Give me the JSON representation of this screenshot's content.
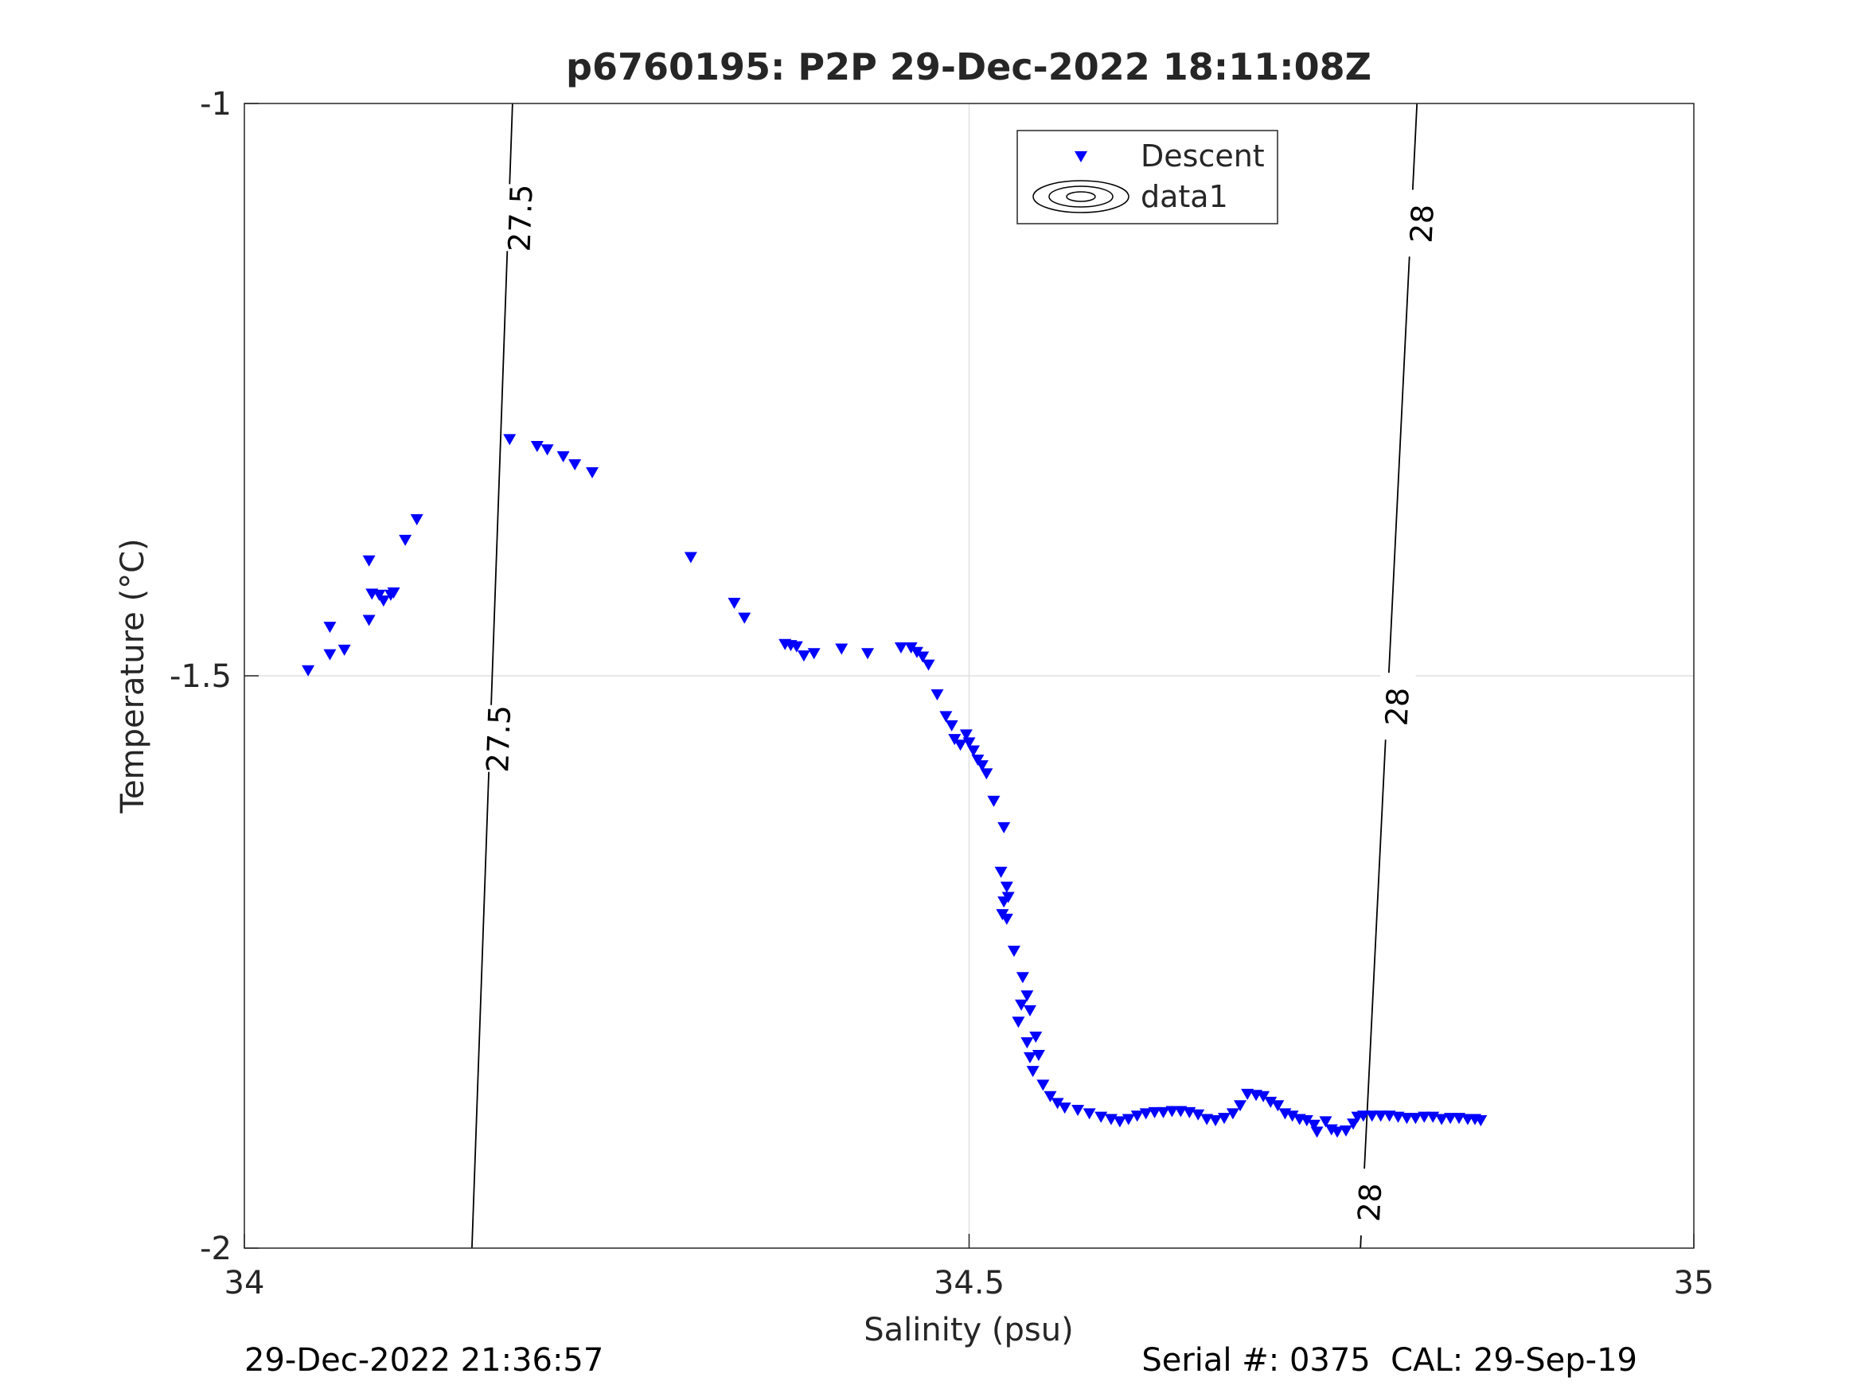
{
  "chart_data": {
    "type": "scatter",
    "title": "p6760195: P2P 29-Dec-2022 18:11:08Z",
    "xlabel": "Salinity (psu)",
    "ylabel": "Temperature (°C)",
    "xlim": [
      34,
      35
    ],
    "ylim": [
      -2,
      -1
    ],
    "xticks": [
      34,
      34.5,
      35
    ],
    "xtick_labels": [
      "34",
      "34.5",
      "35"
    ],
    "yticks": [
      -2,
      -1.5,
      -1
    ],
    "ytick_labels": [
      "-2",
      "-1.5",
      "-1"
    ],
    "grid": true,
    "legend": {
      "position": "top-right",
      "entries": [
        "Descent",
        "data1"
      ]
    },
    "series": [
      {
        "name": "Descent",
        "marker": "triangle-down",
        "color": "#0000ff",
        "points": [
          [
            34.044,
            -1.495
          ],
          [
            34.059,
            -1.481
          ],
          [
            34.059,
            -1.457
          ],
          [
            34.069,
            -1.477
          ],
          [
            34.086,
            -1.399
          ],
          [
            34.086,
            -1.451
          ],
          [
            34.088,
            -1.428
          ],
          [
            34.093,
            -1.429
          ],
          [
            34.096,
            -1.434
          ],
          [
            34.101,
            -1.429
          ],
          [
            34.103,
            -1.427
          ],
          [
            34.111,
            -1.381
          ],
          [
            34.119,
            -1.363
          ],
          [
            34.183,
            -1.293
          ],
          [
            34.202,
            -1.299
          ],
          [
            34.209,
            -1.302
          ],
          [
            34.22,
            -1.308
          ],
          [
            34.228,
            -1.315
          ],
          [
            34.24,
            -1.322
          ],
          [
            34.308,
            -1.396
          ],
          [
            34.338,
            -1.436
          ],
          [
            34.345,
            -1.449
          ],
          [
            34.373,
            -1.472
          ],
          [
            34.377,
            -1.473
          ],
          [
            34.381,
            -1.474
          ],
          [
            34.386,
            -1.482
          ],
          [
            34.393,
            -1.48
          ],
          [
            34.412,
            -1.476
          ],
          [
            34.43,
            -1.48
          ],
          [
            34.453,
            -1.475
          ],
          [
            34.46,
            -1.475
          ],
          [
            34.464,
            -1.479
          ],
          [
            34.468,
            -1.483
          ],
          [
            34.472,
            -1.49
          ],
          [
            34.478,
            -1.516
          ],
          [
            34.484,
            -1.535
          ],
          [
            34.488,
            -1.543
          ],
          [
            34.49,
            -1.555
          ],
          [
            34.494,
            -1.56
          ],
          [
            34.498,
            -1.551
          ],
          [
            34.5,
            -1.558
          ],
          [
            34.503,
            -1.565
          ],
          [
            34.506,
            -1.573
          ],
          [
            34.509,
            -1.578
          ],
          [
            34.512,
            -1.585
          ],
          [
            34.517,
            -1.609
          ],
          [
            34.524,
            -1.632
          ],
          [
            34.522,
            -1.671
          ],
          [
            34.526,
            -1.684
          ],
          [
            34.527,
            -1.693
          ],
          [
            34.524,
            -1.697
          ],
          [
            34.523,
            -1.708
          ],
          [
            34.526,
            -1.712
          ],
          [
            34.531,
            -1.74
          ],
          [
            34.537,
            -1.763
          ],
          [
            34.54,
            -1.779
          ],
          [
            34.536,
            -1.787
          ],
          [
            34.542,
            -1.792
          ],
          [
            34.534,
            -1.802
          ],
          [
            34.546,
            -1.815
          ],
          [
            34.54,
            -1.82
          ],
          [
            34.542,
            -1.833
          ],
          [
            34.548,
            -1.831
          ],
          [
            34.544,
            -1.845
          ],
          [
            34.551,
            -1.857
          ],
          [
            34.556,
            -1.867
          ],
          [
            34.561,
            -1.873
          ],
          [
            34.566,
            -1.877
          ],
          [
            34.575,
            -1.879
          ],
          [
            34.583,
            -1.882
          ],
          [
            34.591,
            -1.885
          ],
          [
            34.598,
            -1.887
          ],
          [
            34.604,
            -1.889
          ],
          [
            34.61,
            -1.887
          ],
          [
            34.616,
            -1.884
          ],
          [
            34.622,
            -1.882
          ],
          [
            34.628,
            -1.881
          ],
          [
            34.634,
            -1.881
          ],
          [
            34.64,
            -1.88
          ],
          [
            34.646,
            -1.88
          ],
          [
            34.652,
            -1.881
          ],
          [
            34.658,
            -1.883
          ],
          [
            34.664,
            -1.887
          ],
          [
            34.67,
            -1.888
          ],
          [
            34.676,
            -1.886
          ],
          [
            34.682,
            -1.882
          ],
          [
            34.687,
            -1.875
          ],
          [
            34.692,
            -1.865
          ],
          [
            34.698,
            -1.866
          ],
          [
            34.703,
            -1.867
          ],
          [
            34.708,
            -1.872
          ],
          [
            34.713,
            -1.875
          ],
          [
            34.718,
            -1.882
          ],
          [
            34.723,
            -1.884
          ],
          [
            34.728,
            -1.887
          ],
          [
            34.733,
            -1.888
          ],
          [
            34.738,
            -1.892
          ],
          [
            34.74,
            -1.898
          ],
          [
            34.746,
            -1.889
          ],
          [
            34.75,
            -1.896
          ],
          [
            34.754,
            -1.898
          ],
          [
            34.76,
            -1.897
          ],
          [
            34.765,
            -1.891
          ],
          [
            34.768,
            -1.885
          ],
          [
            34.772,
            -1.884
          ],
          [
            34.778,
            -1.884
          ],
          [
            34.784,
            -1.884
          ],
          [
            34.79,
            -1.884
          ],
          [
            34.796,
            -1.885
          ],
          [
            34.802,
            -1.886
          ],
          [
            34.808,
            -1.886
          ],
          [
            34.814,
            -1.885
          ],
          [
            34.82,
            -1.885
          ],
          [
            34.826,
            -1.887
          ],
          [
            34.832,
            -1.886
          ],
          [
            34.838,
            -1.886
          ],
          [
            34.844,
            -1.887
          ],
          [
            34.849,
            -1.887
          ],
          [
            34.853,
            -1.888
          ]
        ]
      },
      {
        "name": "data1",
        "type": "contour",
        "color": "#000000",
        "levels": [
          {
            "label": "27.5",
            "line": [
              [
                34.157,
                -2.0
              ],
              [
                34.185,
                -1.0
              ]
            ],
            "labels_at": [
              [
                34.175,
                -1.555
              ],
              [
                34.19,
                -1.1
              ]
            ]
          },
          {
            "label": "28",
            "line": [
              [
                34.77,
                -2.0
              ],
              [
                34.809,
                -1.0
              ]
            ],
            "labels_at": [
              [
                34.776,
                -1.96
              ],
              [
                34.795,
                -1.527
              ],
              [
                34.812,
                -1.105
              ]
            ]
          }
        ]
      }
    ]
  },
  "footer": {
    "timestamp": "29-Dec-2022 21:36:57",
    "serial": "Serial #: 0375  CAL: 29-Sep-19"
  },
  "colors": {
    "marker": "#0000ff",
    "axis": "#262626",
    "grid": "#e0e0e0",
    "contour": "#000000"
  }
}
